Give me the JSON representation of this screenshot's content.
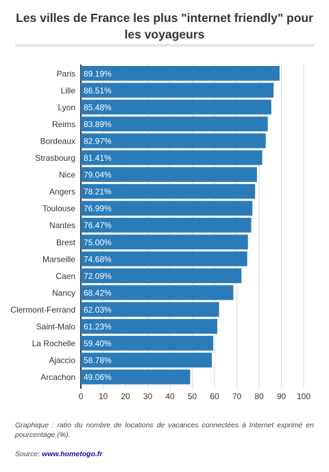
{
  "title": "Les villes de France les plus \"internet friendly\" pour les voyageurs",
  "caption": "Graphique : ratio du nombre de locations de vacances connectées à Internet exprimé en pourcentage (%).",
  "source": {
    "label": "Source: ",
    "link_text": "www.hometogo.fr"
  },
  "colors": {
    "bar": "#2b7bb9",
    "grid": "#d9d9d9",
    "axis": "#333333"
  },
  "chart_data": {
    "type": "bar",
    "orientation": "horizontal",
    "categories": [
      "Paris",
      "Lille",
      "Lyon",
      "Reims",
      "Bordeaux",
      "Strasbourg",
      "Nice",
      "Angers",
      "Toulouse",
      "Nantes",
      "Brest",
      "Marseille",
      "Caen",
      "Nancy",
      "Clermont-Ferrand",
      "Saint-Malo",
      "La Rochelle",
      "Ajaccio",
      "Arcachon"
    ],
    "values": [
      89.19,
      86.51,
      85.48,
      83.89,
      82.97,
      81.41,
      79.04,
      78.21,
      76.99,
      76.47,
      75.0,
      74.68,
      72.09,
      68.42,
      62.03,
      61.23,
      59.4,
      58.78,
      49.06
    ],
    "value_labels": [
      "89.19%",
      "86.51%",
      "85.48%",
      "83.89%",
      "82.97%",
      "81.41%",
      "79.04%",
      "78.21%",
      "76.99%",
      "76.47%",
      "75.00%",
      "74.68%",
      "72.09%",
      "68.42%",
      "62.03%",
      "61.23%",
      "59.40%",
      "58.78%",
      "49.06%"
    ],
    "xlim": [
      0,
      100
    ],
    "xticks": [
      0,
      10,
      20,
      30,
      40,
      50,
      60,
      70,
      80,
      90,
      100
    ],
    "grid": true,
    "legend": "none"
  }
}
